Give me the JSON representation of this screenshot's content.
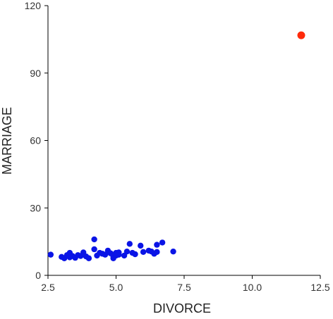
{
  "chart_data": {
    "type": "scatter",
    "xlabel": "DIVORCE",
    "ylabel": "MARRIAGE",
    "xlim": [
      2.5,
      12.5
    ],
    "ylim": [
      0,
      120
    ],
    "xticks": [
      2.5,
      5.0,
      7.5,
      10.0,
      12.5
    ],
    "xtick_labels": [
      "2.5",
      "5.0",
      "7.5",
      "10.0",
      "12.5"
    ],
    "yticks": [
      0,
      30,
      60,
      90,
      120
    ],
    "ytick_labels": [
      "0",
      "30",
      "60",
      "90",
      "120"
    ],
    "grid": false,
    "colors": {
      "normal": "#0a14e6",
      "outlier": "#ff2a0a",
      "axis": "#000000"
    },
    "series": [
      {
        "color_key": "normal",
        "points": [
          [
            2.6,
            9.2
          ],
          [
            3.0,
            8.2
          ],
          [
            3.1,
            7.6
          ],
          [
            3.2,
            9.0
          ],
          [
            3.3,
            10.0
          ],
          [
            3.3,
            8.0
          ],
          [
            3.4,
            8.6
          ],
          [
            3.5,
            7.8
          ],
          [
            3.6,
            9.0
          ],
          [
            3.7,
            8.6
          ],
          [
            3.8,
            10.2
          ],
          [
            3.9,
            8.4
          ],
          [
            4.0,
            7.6
          ],
          [
            4.2,
            11.6
          ],
          [
            4.2,
            16.0
          ],
          [
            4.3,
            8.8
          ],
          [
            4.4,
            10.0
          ],
          [
            4.5,
            9.6
          ],
          [
            4.6,
            9.2
          ],
          [
            4.7,
            11.0
          ],
          [
            4.8,
            9.8
          ],
          [
            4.9,
            8.4
          ],
          [
            4.9,
            7.6
          ],
          [
            5.0,
            10.0
          ],
          [
            5.0,
            8.8
          ],
          [
            5.1,
            9.2
          ],
          [
            5.1,
            10.2
          ],
          [
            5.3,
            8.8
          ],
          [
            5.4,
            10.6
          ],
          [
            5.5,
            14.0
          ],
          [
            5.6,
            10.0
          ],
          [
            5.7,
            9.4
          ],
          [
            5.9,
            13.2
          ],
          [
            6.0,
            10.4
          ],
          [
            6.2,
            11.0
          ],
          [
            6.3,
            10.6
          ],
          [
            6.4,
            9.6
          ],
          [
            6.5,
            10.4
          ],
          [
            6.5,
            13.6
          ],
          [
            6.7,
            14.6
          ],
          [
            7.1,
            10.6
          ]
        ]
      },
      {
        "color_key": "outlier",
        "points": [
          [
            11.8,
            106.8
          ]
        ]
      }
    ]
  }
}
